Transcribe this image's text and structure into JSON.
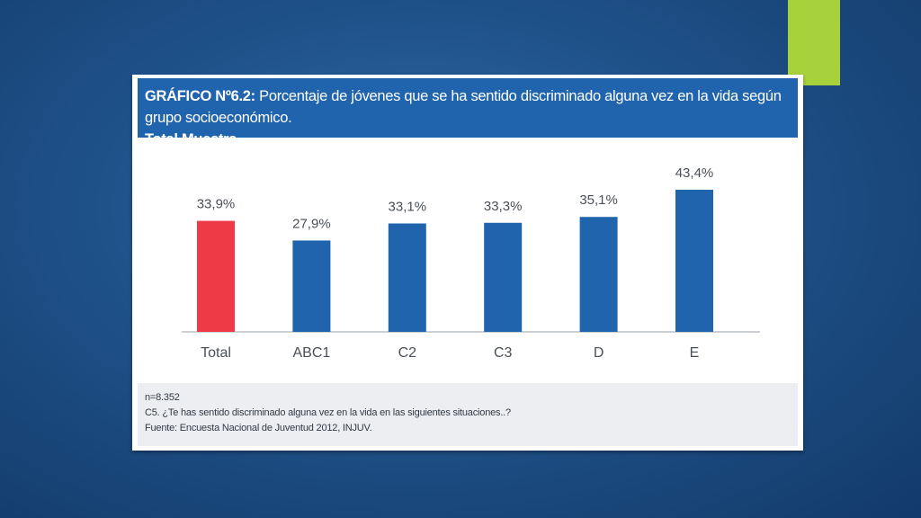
{
  "slide": {
    "accent_color": "#a8d23c"
  },
  "header": {
    "title_bold": "GRÁFICO Nº6.2:",
    "title_rest": " Porcentaje de jóvenes que se ha sentido discriminado alguna vez en la vida según grupo socioeconómico.",
    "subtitle": "Total Muestra."
  },
  "chart_data": {
    "type": "bar",
    "title": "GRÁFICO Nº6.2: Porcentaje de jóvenes que se ha sentido discriminado alguna vez en la vida según grupo socioeconómico. Total Muestra.",
    "categories": [
      "Total",
      "ABC1",
      "C2",
      "C3",
      "D",
      "E"
    ],
    "values": [
      33.9,
      27.9,
      33.1,
      33.3,
      35.1,
      43.4
    ],
    "value_labels": [
      "33,9%",
      "27,9%",
      "33,1%",
      "33,3%",
      "35,1%",
      "43,4%"
    ],
    "colors": [
      "#ee3a46",
      "#1f64ad",
      "#1f64ad",
      "#1f64ad",
      "#1f64ad",
      "#1f64ad"
    ],
    "ylim": [
      0,
      50
    ],
    "grid": false,
    "xlabel": "",
    "ylabel": ""
  },
  "footer": {
    "n": "n=8.352",
    "question": "C5. ¿Te has sentido discriminado alguna vez en la vida en las siguientes situaciones..?",
    "source": "Fuente: Encuesta Nacional de Juventud 2012, INJUV."
  }
}
